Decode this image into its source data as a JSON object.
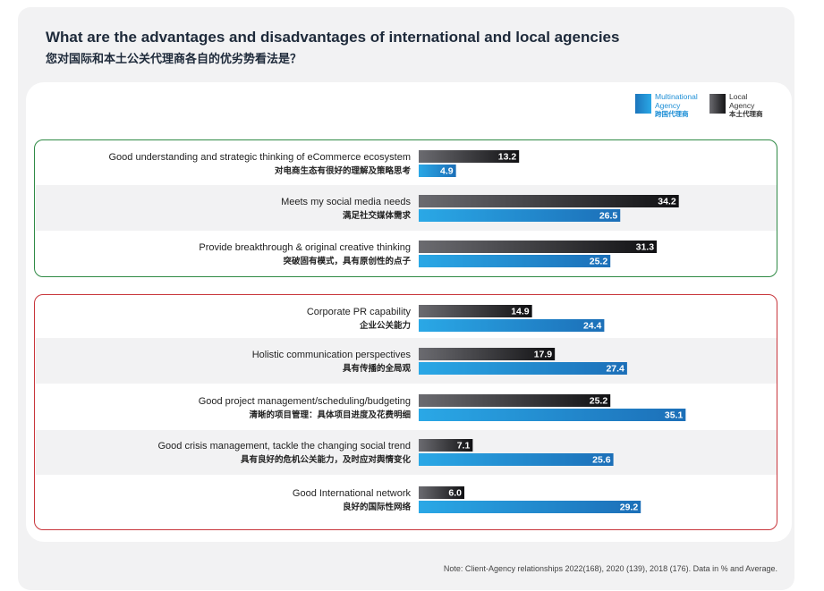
{
  "title": {
    "en": "What are the advantages and disadvantages of international and local agencies",
    "zh": "您对国际和本土公关代理商各自的优劣势看法是？"
  },
  "legend": {
    "multinational": {
      "en": "Multinational Agency",
      "zh": "跨国代理商",
      "color": "#1e8fd6"
    },
    "local": {
      "en": "Local Agency",
      "zh": "本土代理商",
      "color": "#1a1a1a"
    }
  },
  "colors": {
    "advantage_group_border": "#2f8a45",
    "disadvantage_group_border": "#c8353b"
  },
  "chart_data": {
    "type": "bar",
    "orientation": "horizontal",
    "categories": [
      "Good understanding and strategic thinking of eCommerce ecosystem",
      "Meets my social media needs",
      "Provide breakthrough & original creative thinking",
      "Corporate PR capability",
      "Holistic communication perspectives",
      "Good project management/scheduling/budgeting",
      "Good crisis management, tackle the changing social trend",
      "Good International network"
    ],
    "categories_zh": [
      "对电商生态有很好的理解及策略思考",
      "满足社交媒体需求",
      "突破固有模式，具有原创性的点子",
      "企业公关能力",
      "具有传播的全局观",
      "清晰的项目管理：具体项目进度及花费明细",
      "具有良好的危机公关能力，及时应对舆情变化",
      "良好的国际性网络"
    ],
    "groups": [
      {
        "border_color": "#2f8a45",
        "category_indices": [
          0,
          1,
          2
        ]
      },
      {
        "border_color": "#c8353b",
        "category_indices": [
          3,
          4,
          5,
          6,
          7
        ]
      }
    ],
    "series": [
      {
        "name": "Local Agency",
        "values": [
          13.2,
          34.2,
          31.3,
          14.9,
          17.9,
          25.2,
          7.1,
          6.0
        ]
      },
      {
        "name": "Multinational Agency",
        "values": [
          4.9,
          26.5,
          25.2,
          24.4,
          27.4,
          35.1,
          25.6,
          29.2
        ]
      }
    ],
    "value_labels_local": [
      "13.2",
      "34.2",
      "31.3",
      "14.9",
      "17.9",
      "25.2",
      "7.1",
      "6.0"
    ],
    "value_labels_multinational": [
      "4.9",
      "26.5",
      "25.2",
      "24.4",
      "27.4",
      "35.1",
      "25.6",
      "29.2"
    ],
    "xlim": [
      0,
      40
    ]
  },
  "note": "Note: Client-Agency relationships 2022(168), 2020 (139), 2018 (176). Data in % and Average."
}
